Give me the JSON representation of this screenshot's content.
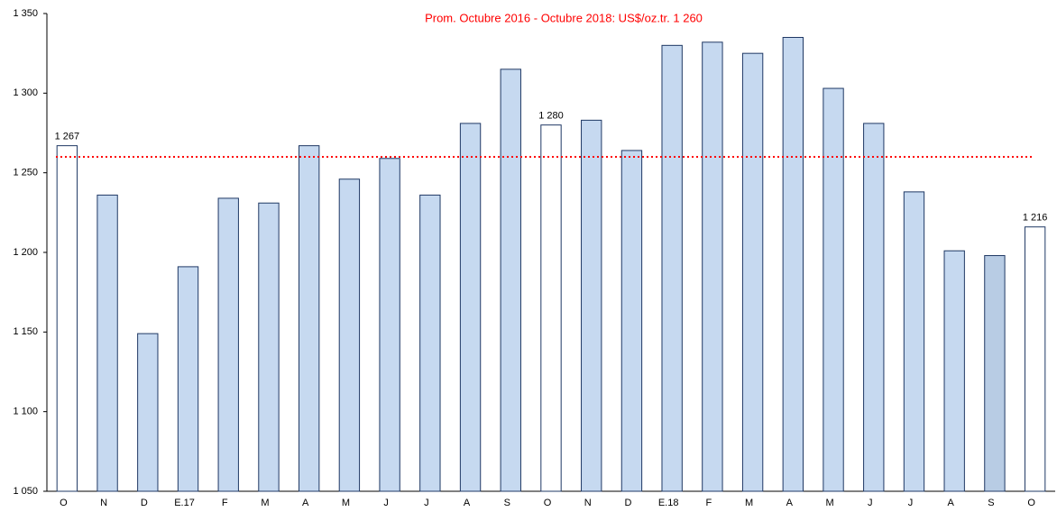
{
  "chart_data": {
    "type": "bar",
    "categories": [
      "O",
      "N",
      "D",
      "E.17",
      "F",
      "M",
      "A",
      "M",
      "J",
      "J",
      "A",
      "S",
      "O",
      "N",
      "D",
      "E.18",
      "F",
      "M",
      "A",
      "M",
      "J",
      "J",
      "A",
      "S",
      "O"
    ],
    "values": [
      1267,
      1236,
      1149,
      1191,
      1234,
      1231,
      1267,
      1246,
      1259,
      1236,
      1281,
      1315,
      1280,
      1283,
      1264,
      1330,
      1332,
      1325,
      1335,
      1303,
      1281,
      1238,
      1201,
      1198,
      1216
    ],
    "value_labels": [
      "1 267",
      null,
      null,
      null,
      null,
      null,
      null,
      null,
      null,
      null,
      null,
      null,
      "1 280",
      null,
      null,
      null,
      null,
      null,
      null,
      null,
      null,
      null,
      null,
      null,
      "1 216"
    ],
    "colors": [
      "#ffffff",
      "#c6d9f0",
      "#c6d9f0",
      "#c6d9f0",
      "#c6d9f0",
      "#c6d9f0",
      "#c6d9f0",
      "#c6d9f0",
      "#c6d9f0",
      "#c6d9f0",
      "#c6d9f0",
      "#c6d9f0",
      "#ffffff",
      "#c6d9f0",
      "#c6d9f0",
      "#c6d9f0",
      "#c6d9f0",
      "#c6d9f0",
      "#c6d9f0",
      "#c6d9f0",
      "#c6d9f0",
      "#c6d9f0",
      "#c6d9f0",
      "#b8cce4",
      "#ffffff"
    ],
    "border_color": "#1f3864",
    "ylim": [
      1050,
      1350
    ],
    "yticks": [
      {
        "value": 1050,
        "label": "1 050"
      },
      {
        "value": 1100,
        "label": "1 100"
      },
      {
        "value": 1150,
        "label": "1 150"
      },
      {
        "value": 1200,
        "label": "1 200"
      },
      {
        "value": 1250,
        "label": "1 250"
      },
      {
        "value": 1300,
        "label": "1 300"
      },
      {
        "value": 1350,
        "label": "1 350"
      }
    ],
    "reference_line": {
      "value": 1260,
      "label": "Prom. Octubre 2016 - Octubre 2018: US$/oz.tr. 1 260",
      "color": "#ff0000"
    }
  }
}
